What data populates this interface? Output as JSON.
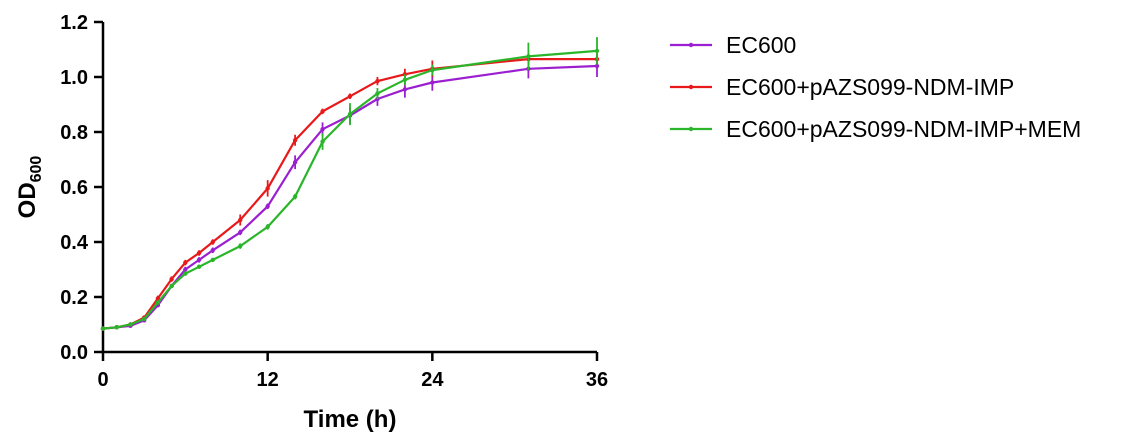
{
  "chart_data": {
    "type": "line",
    "title": "",
    "xlabel": "Time (h)",
    "ylabel_main": "OD",
    "ylabel_sub": "600",
    "xlim": [
      0,
      36
    ],
    "ylim": [
      0,
      1.2
    ],
    "xticks": [
      0,
      12,
      24,
      36
    ],
    "xtick_labels": [
      "0",
      "12",
      "24",
      "36"
    ],
    "yticks": [
      0,
      0.2,
      0.4,
      0.6,
      0.8,
      1.0,
      1.2
    ],
    "ytick_labels": [
      "0.0",
      "0.2",
      "0.4",
      "0.6",
      "0.8",
      "1.0",
      "1.2"
    ],
    "grid": false,
    "legend_position": "right",
    "x": [
      0,
      1,
      2,
      3,
      4,
      5,
      6,
      7,
      8,
      10,
      12,
      14,
      16,
      18,
      20,
      22,
      24,
      31,
      36
    ],
    "series": [
      {
        "name": "EC600",
        "color": "#9b1fd0",
        "values": [
          0.085,
          0.09,
          0.095,
          0.115,
          0.17,
          0.24,
          0.3,
          0.335,
          0.37,
          0.435,
          0.53,
          0.69,
          0.81,
          0.86,
          0.92,
          0.955,
          0.98,
          1.03,
          1.04
        ],
        "errors": [
          0.005,
          0.005,
          0.005,
          0.005,
          0.005,
          0.005,
          0.01,
          0.01,
          0.01,
          0.01,
          0.01,
          0.025,
          0.025,
          0.03,
          0.025,
          0.03,
          0.03,
          0.035,
          0.04
        ]
      },
      {
        "name": "EC600+pAZS099-NDM-IMP",
        "color": "#e8191b",
        "values": [
          0.085,
          0.09,
          0.1,
          0.125,
          0.195,
          0.265,
          0.325,
          0.36,
          0.4,
          0.48,
          0.595,
          0.77,
          0.875,
          0.93,
          0.985,
          1.01,
          1.03,
          1.065,
          1.065
        ],
        "errors": [
          0.005,
          0.005,
          0.005,
          0.005,
          0.01,
          0.01,
          0.01,
          0.01,
          0.01,
          0.02,
          0.03,
          0.02,
          0.01,
          0.01,
          0.015,
          0.02,
          0.03,
          0.02,
          0.02
        ]
      },
      {
        "name": "EC600+pAZS099-NDM-IMP+MEM",
        "color": "#2ab52a",
        "values": [
          0.085,
          0.09,
          0.1,
          0.12,
          0.18,
          0.24,
          0.285,
          0.31,
          0.335,
          0.385,
          0.455,
          0.565,
          0.765,
          0.865,
          0.94,
          0.99,
          1.025,
          1.075,
          1.095
        ],
        "errors": [
          0.005,
          0.005,
          0.005,
          0.005,
          0.005,
          0.005,
          0.005,
          0.005,
          0.005,
          0.01,
          0.01,
          0.01,
          0.03,
          0.04,
          0.02,
          0.02,
          0.02,
          0.05,
          0.05
        ]
      }
    ]
  }
}
